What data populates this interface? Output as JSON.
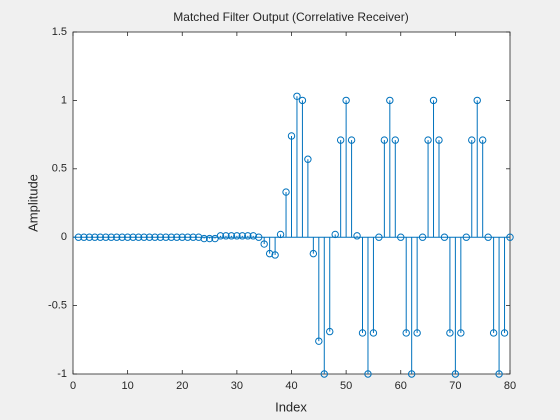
{
  "chart_data": {
    "type": "stem",
    "title": "Matched Filter Output (Correlative Receiver)",
    "x_label": "Index",
    "y_label": "Amplitude",
    "x": [
      1,
      2,
      3,
      4,
      5,
      6,
      7,
      8,
      9,
      10,
      11,
      12,
      13,
      14,
      15,
      16,
      17,
      18,
      19,
      20,
      21,
      22,
      23,
      24,
      25,
      26,
      27,
      28,
      29,
      30,
      31,
      32,
      33,
      34,
      35,
      36,
      37,
      38,
      39,
      40,
      41,
      42,
      43,
      44,
      45,
      46,
      47,
      48,
      49,
      50,
      51,
      52,
      53,
      54,
      55,
      56,
      57,
      58,
      59,
      60,
      61,
      62,
      63,
      64,
      65,
      66,
      67,
      68,
      69,
      70,
      71,
      72,
      73,
      74,
      75,
      76,
      77,
      78,
      79,
      80
    ],
    "values": [
      0,
      0,
      0,
      0,
      0,
      0,
      0,
      0,
      0,
      0,
      0,
      0,
      0,
      0,
      0,
      0,
      0,
      0,
      0,
      0,
      0,
      0,
      0,
      -0.01,
      -0.01,
      -0.01,
      0.01,
      0.01,
      0.01,
      0.01,
      0.01,
      0.01,
      0.01,
      0,
      -0.05,
      -0.12,
      -0.13,
      0.02,
      0.33,
      0.74,
      1.03,
      1.0,
      0.57,
      -0.12,
      -0.76,
      -1.0,
      -0.69,
      0.02,
      0.71,
      1.0,
      0.71,
      0.01,
      -0.7,
      -1.0,
      -0.7,
      0,
      0.71,
      1.0,
      0.71,
      0,
      -0.7,
      -1.0,
      -0.7,
      0,
      0.71,
      1.0,
      0.71,
      0,
      -0.7,
      -1.0,
      -0.7,
      0,
      0.71,
      1.0,
      0.71,
      0,
      -0.7,
      -1.0,
      -0.7,
      0
    ],
    "color": "#0072bd",
    "xlim": [
      0,
      80
    ],
    "xticks": [
      0,
      10,
      20,
      30,
      40,
      50,
      60,
      70,
      80
    ],
    "ylim": [
      -1,
      1.5
    ],
    "yticks": [
      -1,
      -0.5,
      0,
      0.5,
      1,
      1.5
    ]
  }
}
